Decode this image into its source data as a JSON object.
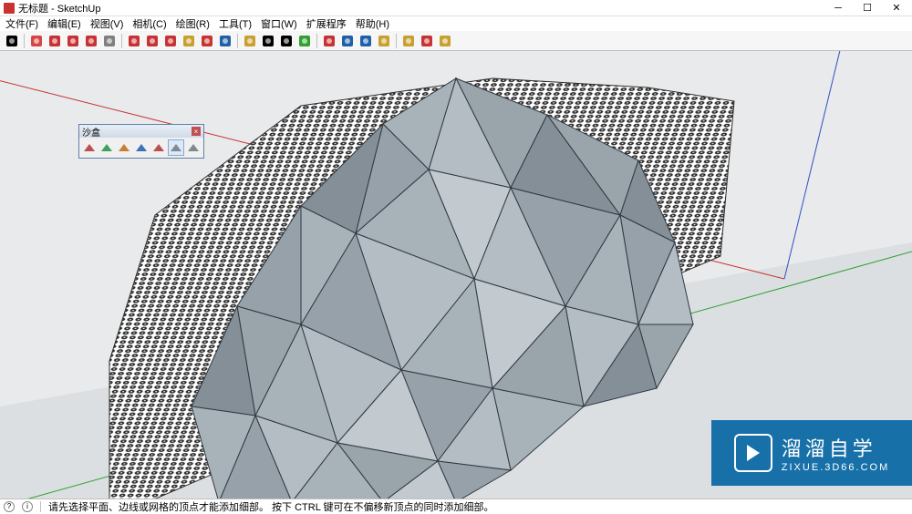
{
  "title": "无标题 - SketchUp",
  "menu": [
    "文件(F)",
    "编辑(E)",
    "视图(V)",
    "相机(C)",
    "绘图(R)",
    "工具(T)",
    "窗口(W)",
    "扩展程序",
    "帮助(H)"
  ],
  "toolbar_icons": [
    {
      "name": "select-arrow",
      "color": "#000000"
    },
    {
      "name": "eraser",
      "color": "#d84444"
    },
    {
      "name": "pencil",
      "color": "#c83232"
    },
    {
      "name": "rectangle",
      "color": "#c83232"
    },
    {
      "name": "shape",
      "color": "#c83232"
    },
    {
      "name": "pushpull",
      "color": "#808080"
    },
    {
      "name": "move",
      "color": "#c83232"
    },
    {
      "name": "rotate",
      "color": "#c83232"
    },
    {
      "name": "scale",
      "color": "#c83232"
    },
    {
      "name": "tape",
      "color": "#c8a030"
    },
    {
      "name": "reload",
      "color": "#c83232"
    },
    {
      "name": "sync",
      "color": "#2060a8"
    },
    {
      "name": "paint",
      "color": "#c8a030"
    },
    {
      "name": "text",
      "color": "#000000"
    },
    {
      "name": "dim",
      "color": "#000000"
    },
    {
      "name": "orbit",
      "color": "#30a030"
    },
    {
      "name": "pan",
      "color": "#c83232"
    },
    {
      "name": "zoom",
      "color": "#2060a8"
    },
    {
      "name": "zoomext",
      "color": "#2060a8"
    },
    {
      "name": "prev",
      "color": "#c8a030"
    },
    {
      "name": "next",
      "color": "#c8a030"
    },
    {
      "name": "ware1",
      "color": "#c83232"
    },
    {
      "name": "ware2",
      "color": "#c8a030"
    }
  ],
  "float_toolbar": {
    "title": "沙盒",
    "items": [
      "from-contours",
      "from-scratch",
      "smoove",
      "stamp",
      "drape",
      "add-detail",
      "flip-edge"
    ],
    "selected_index": 5
  },
  "viewport": {
    "background_color": "#e8eaec",
    "ground_color": "#dcdfe2",
    "axis_colors": {
      "x": "#c83030",
      "y": "#30a030",
      "z": "#3050c0"
    },
    "terrain": {
      "type": "polygonal-mesh",
      "fill_colors": [
        "#a8b2b9",
        "#97a1a9",
        "#858f98",
        "#b4bdc4",
        "#c2cad0",
        "#9aa4ab"
      ],
      "edge_color": "#303841",
      "grid_color": "#2b2b2b",
      "grid_bg": "#ffffff"
    }
  },
  "status": {
    "text": "请先选择平面、边线或网格的顶点才能添加细部。 按下 CTRL 键可在不偏移新顶点的同时添加细部。"
  },
  "watermark": {
    "big": "溜溜自学",
    "small": "ZIXUE.3D66.COM",
    "bg": "#1770a8"
  }
}
